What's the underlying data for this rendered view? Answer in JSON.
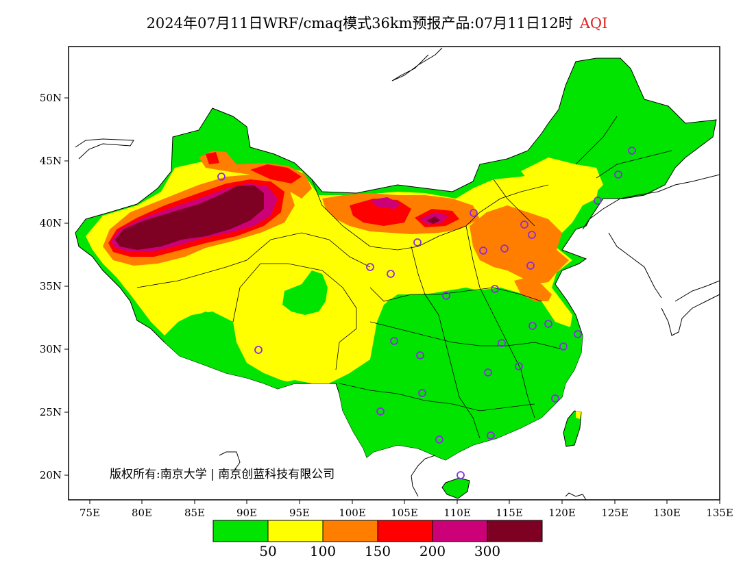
{
  "header": {
    "title": "2024年07月11日WRF/cmaq模式36km预报产品:07月11日12时",
    "variable": "AQI"
  },
  "axes": {
    "x_ticks": [
      "75E",
      "80E",
      "85E",
      "90E",
      "95E",
      "100E",
      "105E",
      "110E",
      "115E",
      "120E",
      "125E",
      "130E",
      "135E"
    ],
    "y_ticks": [
      "20N",
      "25N",
      "30N",
      "35N",
      "40N",
      "45N",
      "50N"
    ]
  },
  "copyright": "版权所有:南京大学 | 南京创蓝科技有限公司",
  "legend": {
    "colors": [
      "#00e400",
      "#ffff00",
      "#ff7e00",
      "#ff0000",
      "#cc0077",
      "#7e0023"
    ],
    "thresholds": [
      "50",
      "100",
      "150",
      "200",
      "300"
    ]
  }
}
